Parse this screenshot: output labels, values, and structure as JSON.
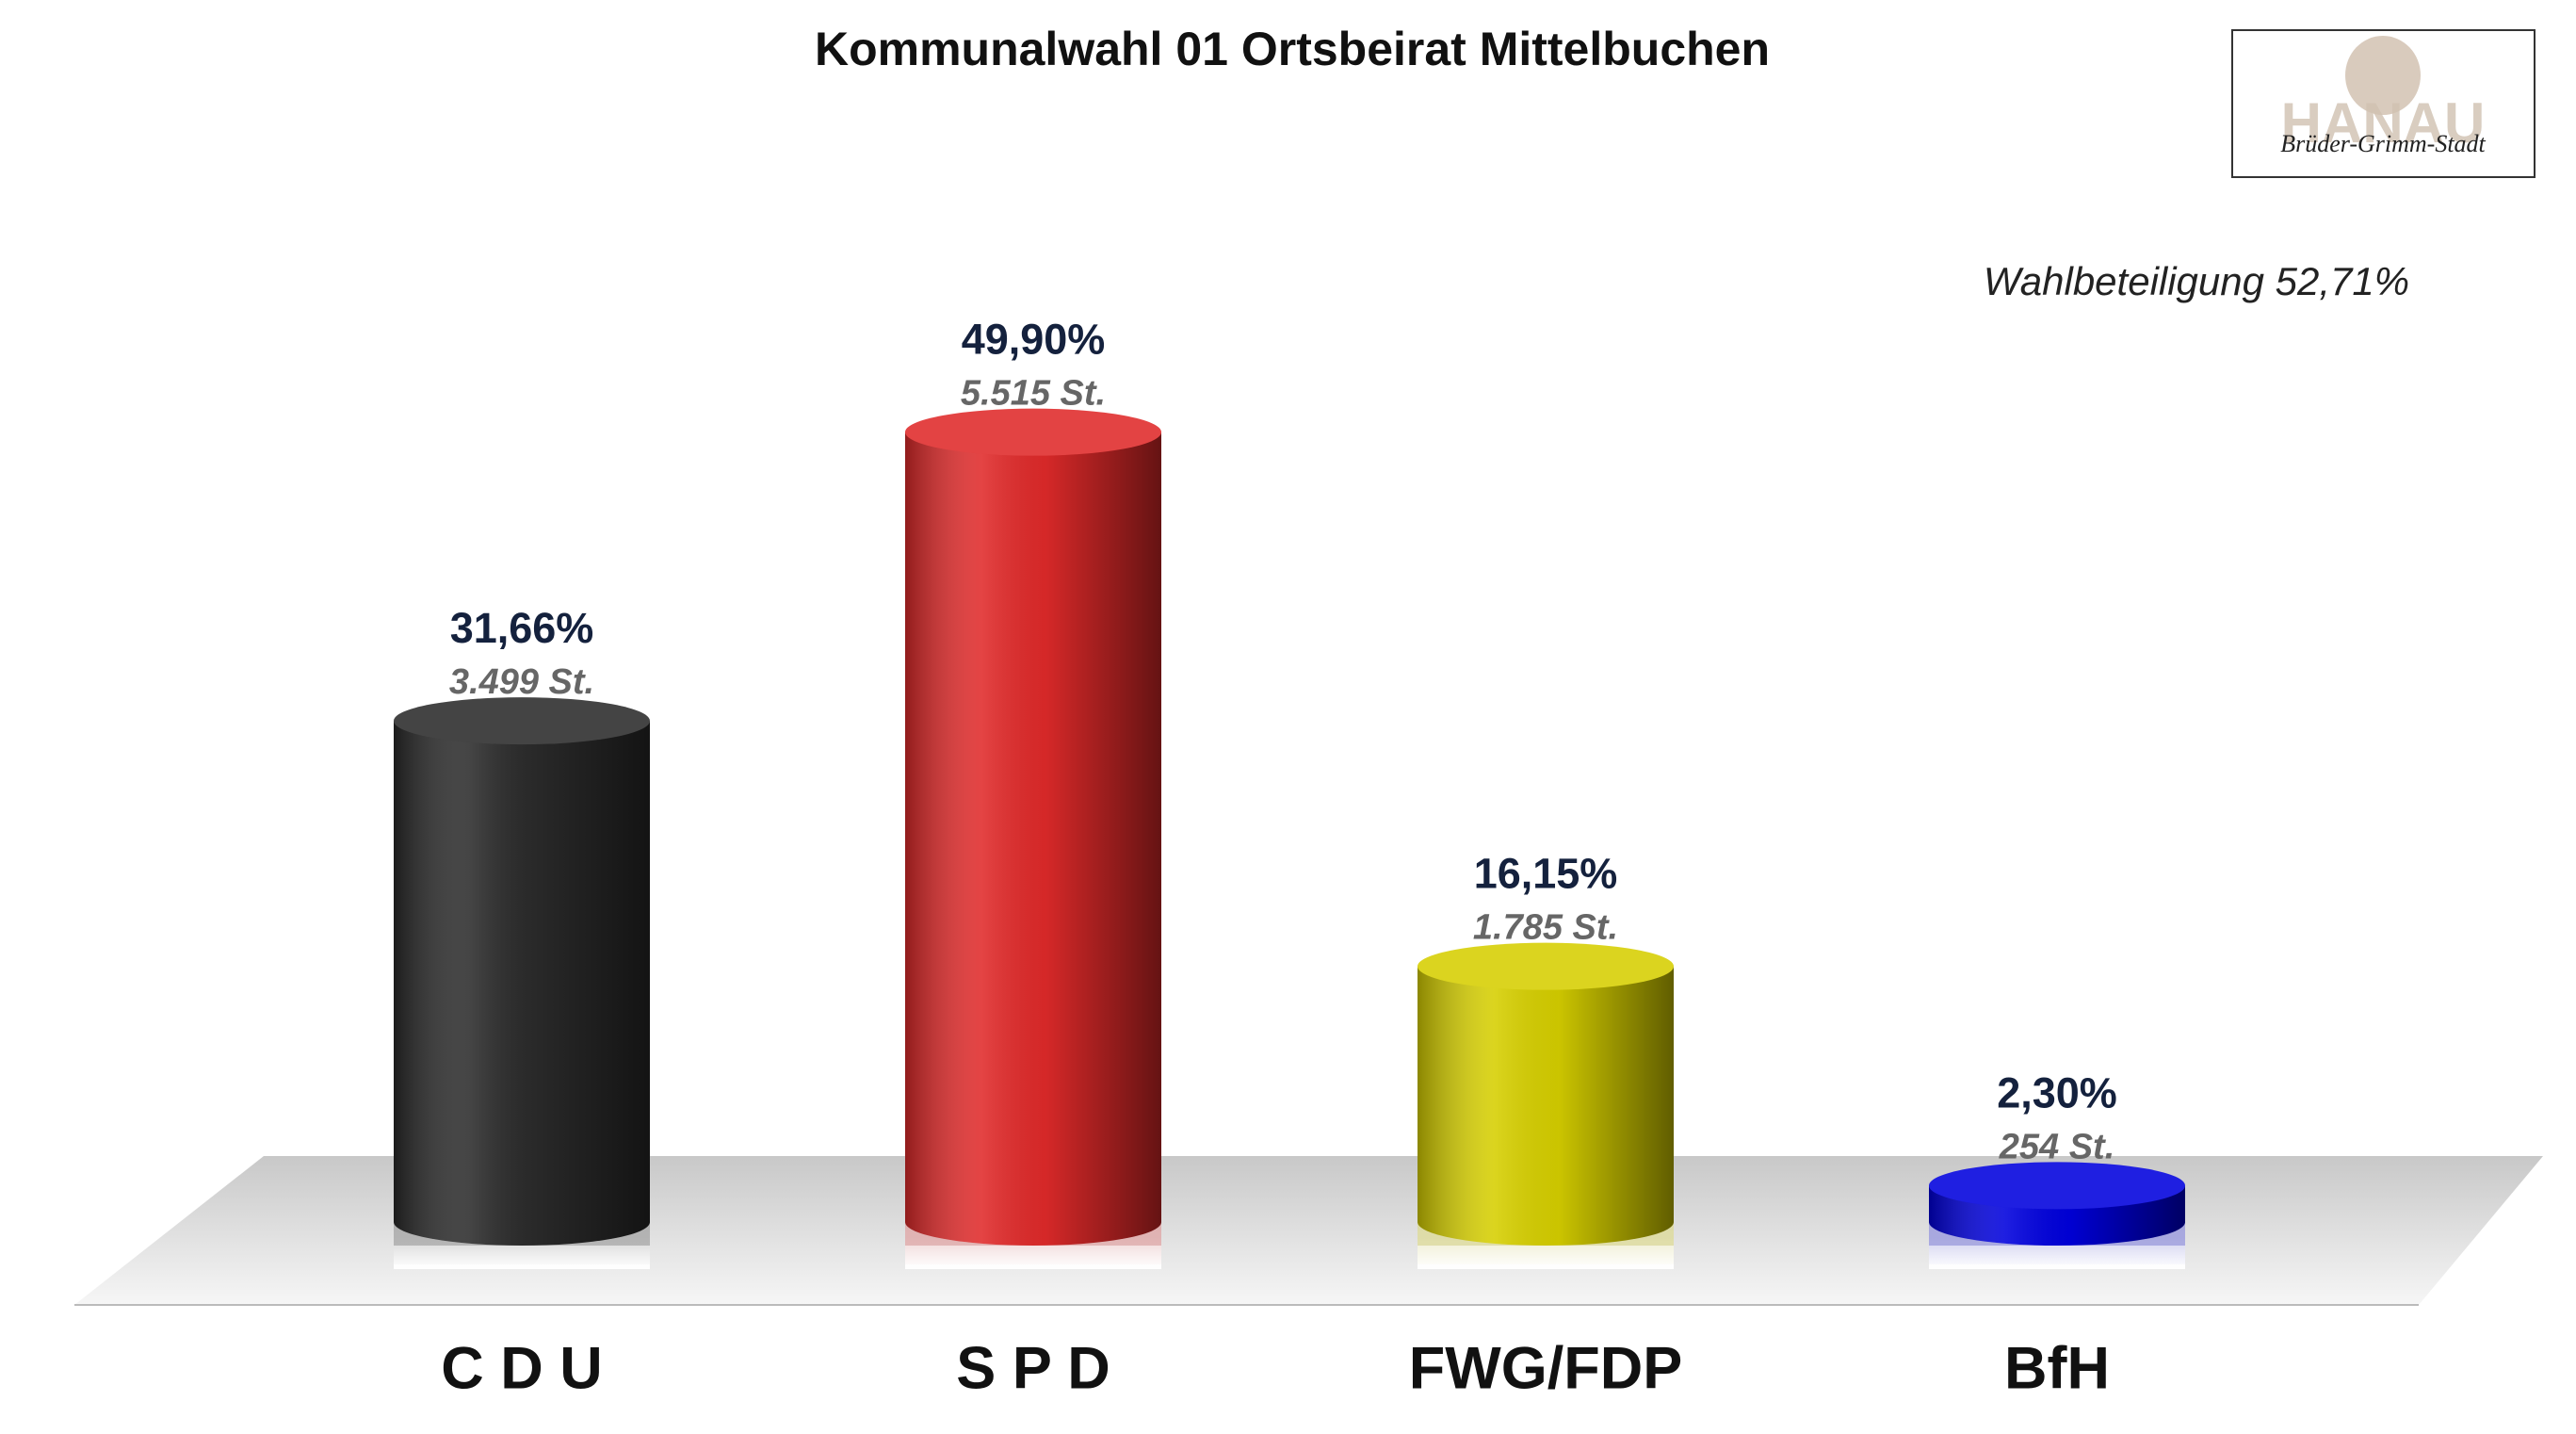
{
  "chart_data": {
    "type": "bar",
    "title": "Kommunalwahl 01 Ortsbeirat Mittelbuchen",
    "annotation": "Wahlbeteiligung 52,71%",
    "logo": {
      "text": "HANAU",
      "subtitle": "Brüder-Grimm-Stadt"
    },
    "categories": [
      "C D U",
      "S P D",
      "FWG/FDP",
      "BfH"
    ],
    "values": [
      31.66,
      49.9,
      16.15,
      2.3
    ],
    "value_labels": [
      "31,66%",
      "49,90%",
      "16,15%",
      "2,30%"
    ],
    "vote_labels": [
      "3.499 St.",
      "5.515 St.",
      "1.785 St.",
      "254 St."
    ],
    "colors": [
      "#2b2b2b",
      "#e02a2a",
      "#d6cf00",
      "#0000dd"
    ],
    "ylim": [
      0,
      55
    ]
  }
}
